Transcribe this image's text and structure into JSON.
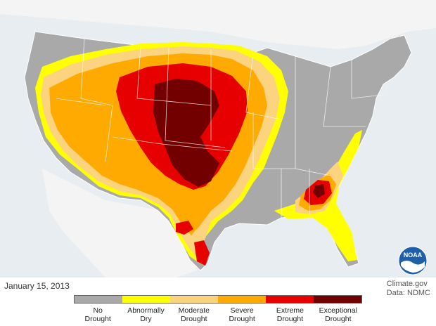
{
  "date": "January 15, 2013",
  "credit": {
    "source": "Climate.gov",
    "data": "Data: NDMC"
  },
  "logo_text": "NOAA",
  "legend": [
    {
      "label": "No\nDrought",
      "color": "#a9a9a9"
    },
    {
      "label": "Abnormally\nDry",
      "color": "#ffff00"
    },
    {
      "label": "Moderate\nDrought",
      "color": "#fcd37f"
    },
    {
      "label": "Severe\nDrought",
      "color": "#ffaa00"
    },
    {
      "label": "Extreme\nDrought",
      "color": "#e60000"
    },
    {
      "label": "Exceptional\nDrought",
      "color": "#730000"
    }
  ],
  "colors": {
    "water": "#e8edf1",
    "neighbor_land": "#f4f4f4",
    "state_border": "#ffffff"
  }
}
